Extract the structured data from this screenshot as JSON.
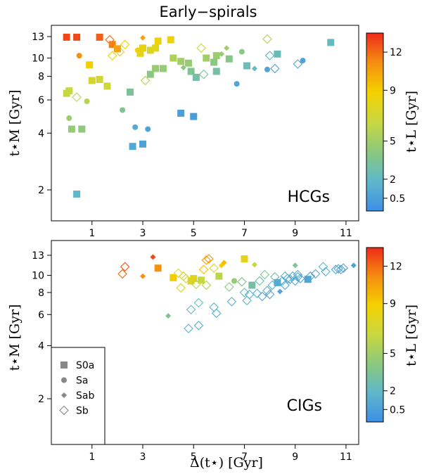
{
  "chart_data": {
    "title": "Early−spirals",
    "type": "scatter",
    "xlabel": "Δ(t⋆) [Gyr]",
    "ylabel": "t⋆M [Gyr]",
    "colorbar_label": "t⋆L [Gyr]",
    "xlim": [
      -0.6,
      11.5
    ],
    "ylim": [
      1.5,
      15.5
    ],
    "yscale": "log",
    "xticks": [
      1,
      3,
      5,
      7,
      9,
      11
    ],
    "yticks": [
      2,
      4,
      6,
      8,
      10,
      13
    ],
    "colorbar_ticks": [
      0.5,
      2,
      5,
      9,
      12
    ],
    "colorbar_range": [
      -0.5,
      13.5
    ],
    "legend": {
      "placement": "bottom-left",
      "entries": [
        {
          "label": "S0a",
          "marker": "square"
        },
        {
          "label": "Sa",
          "marker": "circle"
        },
        {
          "label": "Sab",
          "marker": "diamond"
        },
        {
          "label": "Sb",
          "marker": "open-diamond"
        }
      ]
    },
    "panels": [
      {
        "tag": "HCGs",
        "points": [
          {
            "x": 0.0,
            "y": 12.9,
            "type": "S0a",
            "tl": 12.8
          },
          {
            "x": 0.4,
            "y": 12.9,
            "type": "S0a",
            "tl": 12.8
          },
          {
            "x": 1.3,
            "y": 12.9,
            "type": "S0a",
            "tl": 12.3
          },
          {
            "x": 1.7,
            "y": 12.5,
            "type": "Sb",
            "tl": 12.0
          },
          {
            "x": 0.1,
            "y": 6.7,
            "type": "S0a",
            "tl": 6.5
          },
          {
            "x": 0.0,
            "y": 6.5,
            "type": "S0a",
            "tl": 6.4
          },
          {
            "x": 0.1,
            "y": 4.8,
            "type": "Sa",
            "tl": 4.8
          },
          {
            "x": 0.2,
            "y": 4.2,
            "type": "S0a",
            "tl": 4.5
          },
          {
            "x": 0.4,
            "y": 1.9,
            "type": "S0a",
            "tl": 1.8
          },
          {
            "x": 0.5,
            "y": 10.3,
            "type": "Sa",
            "tl": 11.0
          },
          {
            "x": 0.6,
            "y": 4.2,
            "type": "S0a",
            "tl": 4.3
          },
          {
            "x": 0.4,
            "y": 6.2,
            "type": "Sb",
            "tl": 6.0
          },
          {
            "x": 0.8,
            "y": 5.9,
            "type": "Sa",
            "tl": 5.8
          },
          {
            "x": 0.9,
            "y": 9.2,
            "type": "S0a",
            "tl": 9.0
          },
          {
            "x": 1.0,
            "y": 7.6,
            "type": "S0a",
            "tl": 7.2
          },
          {
            "x": 1.3,
            "y": 7.7,
            "type": "S0a",
            "tl": 7.0
          },
          {
            "x": 1.6,
            "y": 7.1,
            "type": "S0a",
            "tl": 6.7
          },
          {
            "x": 1.8,
            "y": 11.8,
            "type": "S0a",
            "tl": 11.5
          },
          {
            "x": 1.8,
            "y": 10.3,
            "type": "Sb",
            "tl": 8.5
          },
          {
            "x": 2.1,
            "y": 10.8,
            "type": "Sb",
            "tl": 8.0
          },
          {
            "x": 2.0,
            "y": 11.2,
            "type": "S0a",
            "tl": 10.5
          },
          {
            "x": 2.3,
            "y": 11.8,
            "type": "Sb",
            "tl": 9.0
          },
          {
            "x": 2.2,
            "y": 5.3,
            "type": "Sa",
            "tl": 3.5
          },
          {
            "x": 2.5,
            "y": 6.6,
            "type": "S0a",
            "tl": 3.3
          },
          {
            "x": 2.6,
            "y": 3.4,
            "type": "S0a",
            "tl": 1.0
          },
          {
            "x": 2.7,
            "y": 4.3,
            "type": "Sa",
            "tl": 1.0
          },
          {
            "x": 2.8,
            "y": 11.0,
            "type": "Sa",
            "tl": 8.5
          },
          {
            "x": 2.9,
            "y": 10.6,
            "type": "S0a",
            "tl": 8.0
          },
          {
            "x": 3.0,
            "y": 11.3,
            "type": "S0a",
            "tl": 8.2
          },
          {
            "x": 3.0,
            "y": 12.8,
            "type": "Sab",
            "tl": 10.5
          },
          {
            "x": 3.1,
            "y": 7.6,
            "type": "Sb",
            "tl": 5.5
          },
          {
            "x": 3.0,
            "y": 3.5,
            "type": "S0a",
            "tl": 0.6
          },
          {
            "x": 3.2,
            "y": 4.2,
            "type": "Sa",
            "tl": 0.7
          },
          {
            "x": 3.3,
            "y": 11.0,
            "type": "S0a",
            "tl": 7.5
          },
          {
            "x": 3.3,
            "y": 8.2,
            "type": "S0a",
            "tl": 4.0
          },
          {
            "x": 3.5,
            "y": 11.3,
            "type": "S0a",
            "tl": 7.8
          },
          {
            "x": 3.6,
            "y": 12.3,
            "type": "S0a",
            "tl": 8.5
          },
          {
            "x": 3.5,
            "y": 8.8,
            "type": "S0a",
            "tl": 4.6
          },
          {
            "x": 3.8,
            "y": 8.8,
            "type": "S0a",
            "tl": 4.5
          },
          {
            "x": 4.1,
            "y": 12.5,
            "type": "S0a",
            "tl": 8.5
          },
          {
            "x": 4.2,
            "y": 10.0,
            "type": "S0a",
            "tl": 5.5
          },
          {
            "x": 4.5,
            "y": 9.6,
            "type": "S0a",
            "tl": 5.0
          },
          {
            "x": 4.6,
            "y": 8.9,
            "type": "Sab",
            "tl": 4.0
          },
          {
            "x": 4.8,
            "y": 9.4,
            "type": "S0a",
            "tl": 4.5
          },
          {
            "x": 4.9,
            "y": 8.5,
            "type": "S0a",
            "tl": 3.5
          },
          {
            "x": 4.5,
            "y": 5.1,
            "type": "S0a",
            "tl": 0.4
          },
          {
            "x": 5.0,
            "y": 4.9,
            "type": "S0a",
            "tl": 0.3
          },
          {
            "x": 5.1,
            "y": 7.9,
            "type": "S0a",
            "tl": 3.0
          },
          {
            "x": 5.3,
            "y": 11.3,
            "type": "Sb",
            "tl": 6.5
          },
          {
            "x": 5.4,
            "y": 8.2,
            "type": "Sb",
            "tl": 3.3
          },
          {
            "x": 5.5,
            "y": 10.0,
            "type": "S0a",
            "tl": 5.0
          },
          {
            "x": 5.9,
            "y": 10.3,
            "type": "S0a",
            "tl": 4.8
          },
          {
            "x": 6.1,
            "y": 10.5,
            "type": "Sab",
            "tl": 4.5
          },
          {
            "x": 5.8,
            "y": 9.5,
            "type": "S0a",
            "tl": 4.0
          },
          {
            "x": 5.9,
            "y": 8.5,
            "type": "S0a",
            "tl": 3.0
          },
          {
            "x": 6.3,
            "y": 11.3,
            "type": "Sab",
            "tl": 5.0
          },
          {
            "x": 6.4,
            "y": 9.9,
            "type": "S0a",
            "tl": 3.8
          },
          {
            "x": 6.7,
            "y": 7.3,
            "type": "Sa",
            "tl": 0.8
          },
          {
            "x": 6.9,
            "y": 10.8,
            "type": "Sa",
            "tl": 4.0
          },
          {
            "x": 7.1,
            "y": 9.1,
            "type": "S0a",
            "tl": 2.5
          },
          {
            "x": 7.4,
            "y": 8.8,
            "type": "Sab",
            "tl": 2.2
          },
          {
            "x": 7.9,
            "y": 12.6,
            "type": "Sb",
            "tl": 5.5
          },
          {
            "x": 8.0,
            "y": 10.3,
            "type": "Sb",
            "tl": 1.5
          },
          {
            "x": 7.9,
            "y": 8.7,
            "type": "Sa",
            "tl": 0.8
          },
          {
            "x": 8.2,
            "y": 8.8,
            "type": "Sb",
            "tl": 0.9
          },
          {
            "x": 8.3,
            "y": 10.5,
            "type": "S0a",
            "tl": 2.5
          },
          {
            "x": 9.1,
            "y": 9.3,
            "type": "Sb",
            "tl": 0.8
          },
          {
            "x": 9.3,
            "y": 9.7,
            "type": "Sa",
            "tl": 0.6
          },
          {
            "x": 10.4,
            "y": 12.1,
            "type": "S0a",
            "tl": 2.2
          }
        ]
      },
      {
        "tag": "CIGs",
        "points": [
          {
            "x": 2.2,
            "y": 10.2,
            "type": "Sb",
            "tl": 12.0
          },
          {
            "x": 2.3,
            "y": 11.2,
            "type": "Sb",
            "tl": 12.5
          },
          {
            "x": 3.0,
            "y": 9.9,
            "type": "Sab",
            "tl": 11.0
          },
          {
            "x": 3.4,
            "y": 12.7,
            "type": "Sab",
            "tl": 12.8
          },
          {
            "x": 3.6,
            "y": 11.0,
            "type": "S0a",
            "tl": 11.0
          },
          {
            "x": 4.0,
            "y": 5.9,
            "type": "Sab",
            "tl": 3.5
          },
          {
            "x": 4.2,
            "y": 9.7,
            "type": "S0a",
            "tl": 9.0
          },
          {
            "x": 4.4,
            "y": 10.3,
            "type": "Sb",
            "tl": 8.0
          },
          {
            "x": 4.5,
            "y": 8.5,
            "type": "Sb",
            "tl": 7.0
          },
          {
            "x": 4.6,
            "y": 9.9,
            "type": "Sb",
            "tl": 7.5
          },
          {
            "x": 4.7,
            "y": 9.6,
            "type": "Sb",
            "tl": 6.8
          },
          {
            "x": 4.8,
            "y": 5.0,
            "type": "Sb",
            "tl": 1.5
          },
          {
            "x": 4.9,
            "y": 6.4,
            "type": "Sb",
            "tl": 1.8
          },
          {
            "x": 4.9,
            "y": 9.3,
            "type": "S0a",
            "tl": 7.5
          },
          {
            "x": 5.0,
            "y": 9.6,
            "type": "S0a",
            "tl": 7.8
          },
          {
            "x": 5.1,
            "y": 8.9,
            "type": "Sb",
            "tl": 6.0
          },
          {
            "x": 5.2,
            "y": 5.2,
            "type": "Sb",
            "tl": 1.2
          },
          {
            "x": 5.2,
            "y": 7.0,
            "type": "Sb",
            "tl": 2.5
          },
          {
            "x": 5.3,
            "y": 9.4,
            "type": "S0a",
            "tl": 6.5
          },
          {
            "x": 5.4,
            "y": 10.8,
            "type": "Sb",
            "tl": 9.5
          },
          {
            "x": 5.5,
            "y": 12.2,
            "type": "Sb",
            "tl": 10.5
          },
          {
            "x": 5.6,
            "y": 12.4,
            "type": "Sb",
            "tl": 11.0
          },
          {
            "x": 5.5,
            "y": 8.8,
            "type": "Sb",
            "tl": 5.5
          },
          {
            "x": 5.8,
            "y": 11.0,
            "type": "Sb",
            "tl": 8.0
          },
          {
            "x": 5.8,
            "y": 6.6,
            "type": "Sb",
            "tl": 1.5
          },
          {
            "x": 5.9,
            "y": 6.1,
            "type": "Sb",
            "tl": 1.2
          },
          {
            "x": 6.0,
            "y": 9.9,
            "type": "S0a",
            "tl": 6.0
          },
          {
            "x": 6.1,
            "y": 11.4,
            "type": "Sab",
            "tl": 9.0
          },
          {
            "x": 6.2,
            "y": 11.8,
            "type": "Sab",
            "tl": 9.5
          },
          {
            "x": 6.4,
            "y": 8.6,
            "type": "Sb",
            "tl": 3.8
          },
          {
            "x": 6.5,
            "y": 7.1,
            "type": "Sb",
            "tl": 1.5
          },
          {
            "x": 6.6,
            "y": 9.3,
            "type": "Sa",
            "tl": 4.5
          },
          {
            "x": 6.9,
            "y": 9.2,
            "type": "Sb",
            "tl": 3.8
          },
          {
            "x": 7.0,
            "y": 12.4,
            "type": "S0a",
            "tl": 8.0
          },
          {
            "x": 7.0,
            "y": 8.0,
            "type": "Sb",
            "tl": 2.5
          },
          {
            "x": 7.1,
            "y": 7.2,
            "type": "Sb",
            "tl": 1.5
          },
          {
            "x": 7.2,
            "y": 7.8,
            "type": "Sb",
            "tl": 1.3
          },
          {
            "x": 7.3,
            "y": 8.8,
            "type": "S0a",
            "tl": 3.0
          },
          {
            "x": 7.4,
            "y": 11.5,
            "type": "Sab",
            "tl": 6.5
          },
          {
            "x": 7.5,
            "y": 7.9,
            "type": "Sb",
            "tl": 1.2
          },
          {
            "x": 7.6,
            "y": 9.3,
            "type": "Sb",
            "tl": 2.5
          },
          {
            "x": 7.7,
            "y": 7.6,
            "type": "Sb",
            "tl": 0.9
          },
          {
            "x": 7.8,
            "y": 10.1,
            "type": "Sb",
            "tl": 3.5
          },
          {
            "x": 7.9,
            "y": 8.2,
            "type": "Sb",
            "tl": 1.2
          },
          {
            "x": 8.0,
            "y": 7.8,
            "type": "Sb",
            "tl": 0.8
          },
          {
            "x": 8.1,
            "y": 8.8,
            "type": "Sb",
            "tl": 1.5
          },
          {
            "x": 8.2,
            "y": 9.8,
            "type": "Sb",
            "tl": 2.5
          },
          {
            "x": 8.3,
            "y": 9.0,
            "type": "Sab",
            "tl": 1.5
          },
          {
            "x": 8.3,
            "y": 9.1,
            "type": "S0a",
            "tl": 1.2
          },
          {
            "x": 8.4,
            "y": 8.1,
            "type": "Sab",
            "tl": 0.8
          },
          {
            "x": 8.5,
            "y": 9.3,
            "type": "Sb",
            "tl": 1.5
          },
          {
            "x": 8.6,
            "y": 9.9,
            "type": "Sb",
            "tl": 1.8
          },
          {
            "x": 8.6,
            "y": 8.8,
            "type": "Sb",
            "tl": 1.0
          },
          {
            "x": 8.7,
            "y": 9.6,
            "type": "Sb",
            "tl": 1.2
          },
          {
            "x": 8.8,
            "y": 9.5,
            "type": "Sb",
            "tl": 1.0
          },
          {
            "x": 8.9,
            "y": 9.9,
            "type": "Sb",
            "tl": 1.3
          },
          {
            "x": 9.0,
            "y": 9.3,
            "type": "Sb",
            "tl": 0.9
          },
          {
            "x": 9.0,
            "y": 11.4,
            "type": "Sab",
            "tl": 3.5
          },
          {
            "x": 9.1,
            "y": 10.1,
            "type": "Sb",
            "tl": 1.5
          },
          {
            "x": 9.1,
            "y": 9.8,
            "type": "Sb",
            "tl": 1.1
          },
          {
            "x": 9.2,
            "y": 9.6,
            "type": "Sb",
            "tl": 1.0
          },
          {
            "x": 9.5,
            "y": 9.5,
            "type": "S0a",
            "tl": 0.8
          },
          {
            "x": 9.6,
            "y": 9.9,
            "type": "Sb",
            "tl": 1.0
          },
          {
            "x": 9.8,
            "y": 10.2,
            "type": "Sb",
            "tl": 1.2
          },
          {
            "x": 10.1,
            "y": 11.2,
            "type": "Sb",
            "tl": 1.8
          },
          {
            "x": 10.2,
            "y": 10.5,
            "type": "Sb",
            "tl": 1.2
          },
          {
            "x": 10.6,
            "y": 10.8,
            "type": "Sb",
            "tl": 0.9
          },
          {
            "x": 10.7,
            "y": 10.9,
            "type": "Sb",
            "tl": 0.8
          },
          {
            "x": 10.8,
            "y": 10.8,
            "type": "Sb",
            "tl": 0.7
          },
          {
            "x": 10.9,
            "y": 11.0,
            "type": "Sb",
            "tl": 0.8
          },
          {
            "x": 11.3,
            "y": 11.4,
            "type": "Sab",
            "tl": 0.6
          }
        ]
      }
    ]
  }
}
